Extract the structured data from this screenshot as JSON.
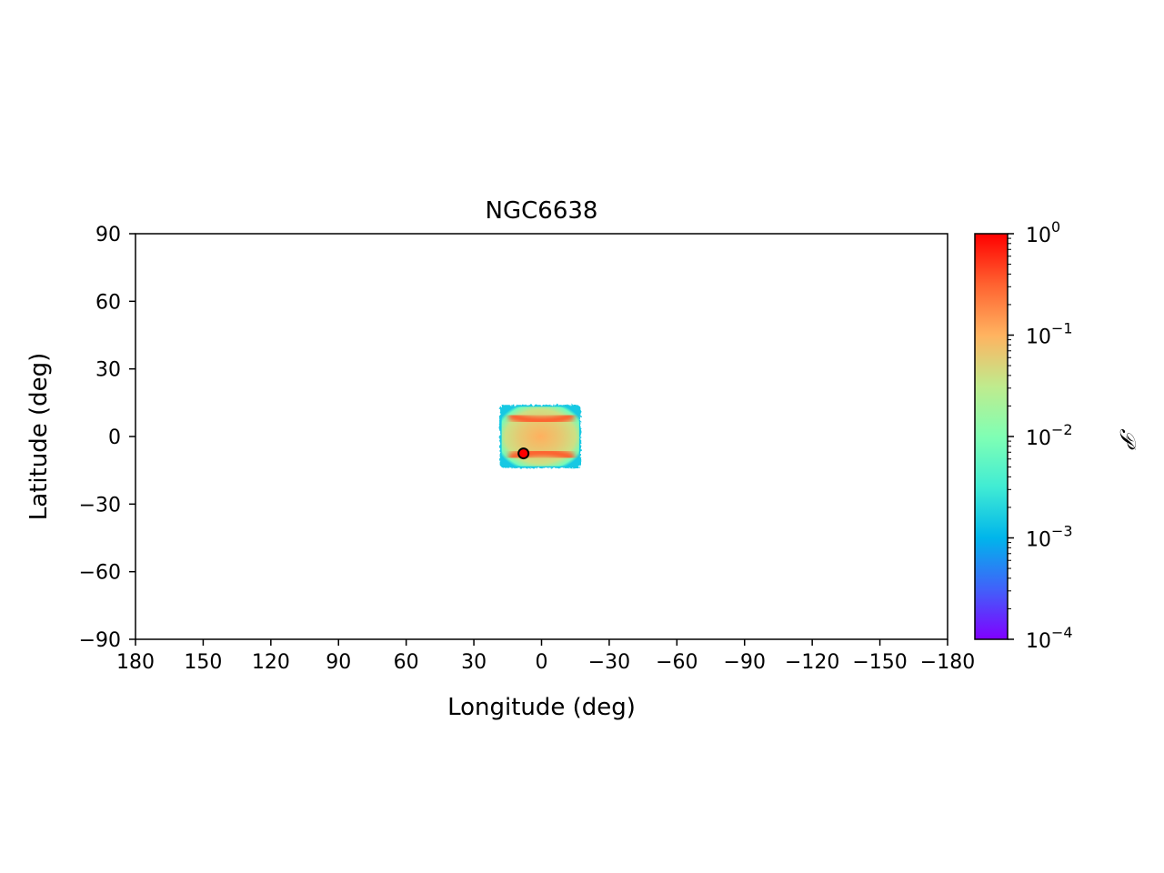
{
  "chart_data": {
    "type": "heatmap",
    "title": "NGC6638",
    "xlabel": "Longitude (deg)",
    "ylabel": "Latitude (deg)",
    "xlim": [
      180,
      -180
    ],
    "ylim": [
      -90,
      90
    ],
    "x_ticks": [
      180,
      150,
      120,
      90,
      60,
      30,
      0,
      -30,
      -60,
      -90,
      -120,
      -150,
      -180
    ],
    "x_tick_labels": [
      "180",
      "150",
      "120",
      "90",
      "60",
      "30",
      "0",
      "−30",
      "−60",
      "−90",
      "−120",
      "−150",
      "−180"
    ],
    "y_ticks": [
      90,
      60,
      30,
      0,
      -30,
      -60,
      -90
    ],
    "y_tick_labels": [
      "90",
      "60",
      "30",
      "0",
      "−30",
      "−60",
      "−90"
    ],
    "grid": false,
    "colorbar": {
      "label": "𝒫",
      "scale": "log",
      "colormap": "rainbow",
      "min": 0.0001,
      "max": 1,
      "ticks": [
        1,
        0.1,
        0.01,
        0.001,
        0.0001
      ],
      "tick_labels": [
        {
          "base": "10",
          "exp": "0"
        },
        {
          "base": "10",
          "exp": "−1"
        },
        {
          "base": "10",
          "exp": "−2"
        },
        {
          "base": "10",
          "exp": "−3"
        },
        {
          "base": "10",
          "exp": "−4"
        }
      ],
      "colors": [
        "#8000ff",
        "#4062fa",
        "#00b5eb",
        "#40ecd4",
        "#80ffb4",
        "#c0eb8d",
        "#ffb360",
        "#ff6230",
        "#ff0000"
      ]
    },
    "density_region": {
      "lon_range": [
        -17.5,
        18.5
      ],
      "lat_range": [
        -14,
        14
      ],
      "peak_value": 0.35,
      "edge_value": 0.0015,
      "ridges": [
        {
          "lat": 7,
          "lon_range": [
            -13,
            13
          ]
        },
        {
          "lat": -7,
          "lon_range": [
            -13,
            13
          ]
        }
      ]
    },
    "marker": {
      "lon": 8,
      "lat": -7.5,
      "color": "#ff0000",
      "edge": "#000000"
    }
  }
}
